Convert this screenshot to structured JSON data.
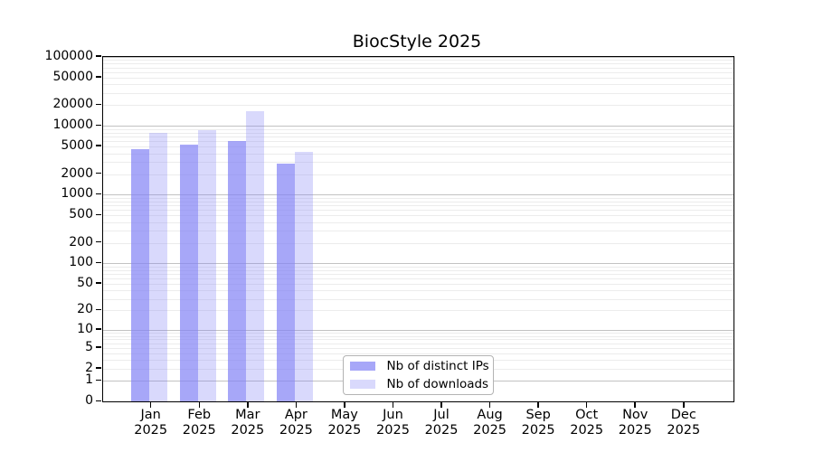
{
  "title": "BiocStyle 2025",
  "colors": {
    "bar_distinct_ips": "rgba(130,130,245,0.7)",
    "bar_downloads": "rgba(130,130,245,0.3)",
    "grid_major": "#c2c2c2",
    "grid_minor": "#ececec",
    "axis": "#000000",
    "legend_border": "#b3b3b3"
  },
  "chart_data": {
    "type": "bar",
    "title": "BiocStyle 2025",
    "yscale": "log1p",
    "ylim": [
      0,
      100000
    ],
    "y_ticks": [
      100000,
      50000,
      20000,
      10000,
      5000,
      2000,
      1000,
      500,
      200,
      100,
      50,
      20,
      10,
      5,
      2,
      1,
      0
    ],
    "categories": [
      "Jan",
      "Feb",
      "Mar",
      "Apr",
      "May",
      "Jun",
      "Jul",
      "Aug",
      "Sep",
      "Oct",
      "Nov",
      "Dec"
    ],
    "year": "2025",
    "series": [
      {
        "name": "Nb of distinct IPs",
        "color": "rgba(130,130,245,0.7)",
        "values": [
          4600,
          5300,
          6100,
          2800,
          null,
          null,
          null,
          null,
          null,
          null,
          null,
          null
        ]
      },
      {
        "name": "Nb of downloads",
        "color": "rgba(130,130,245,0.3)",
        "values": [
          7900,
          8600,
          16300,
          4200,
          null,
          null,
          null,
          null,
          null,
          null,
          null,
          null
        ]
      }
    ],
    "grid": true,
    "legend_position": "bottom-center"
  },
  "legend": {
    "items": [
      {
        "label": "Nb of distinct IPs"
      },
      {
        "label": "Nb of downloads"
      }
    ]
  }
}
